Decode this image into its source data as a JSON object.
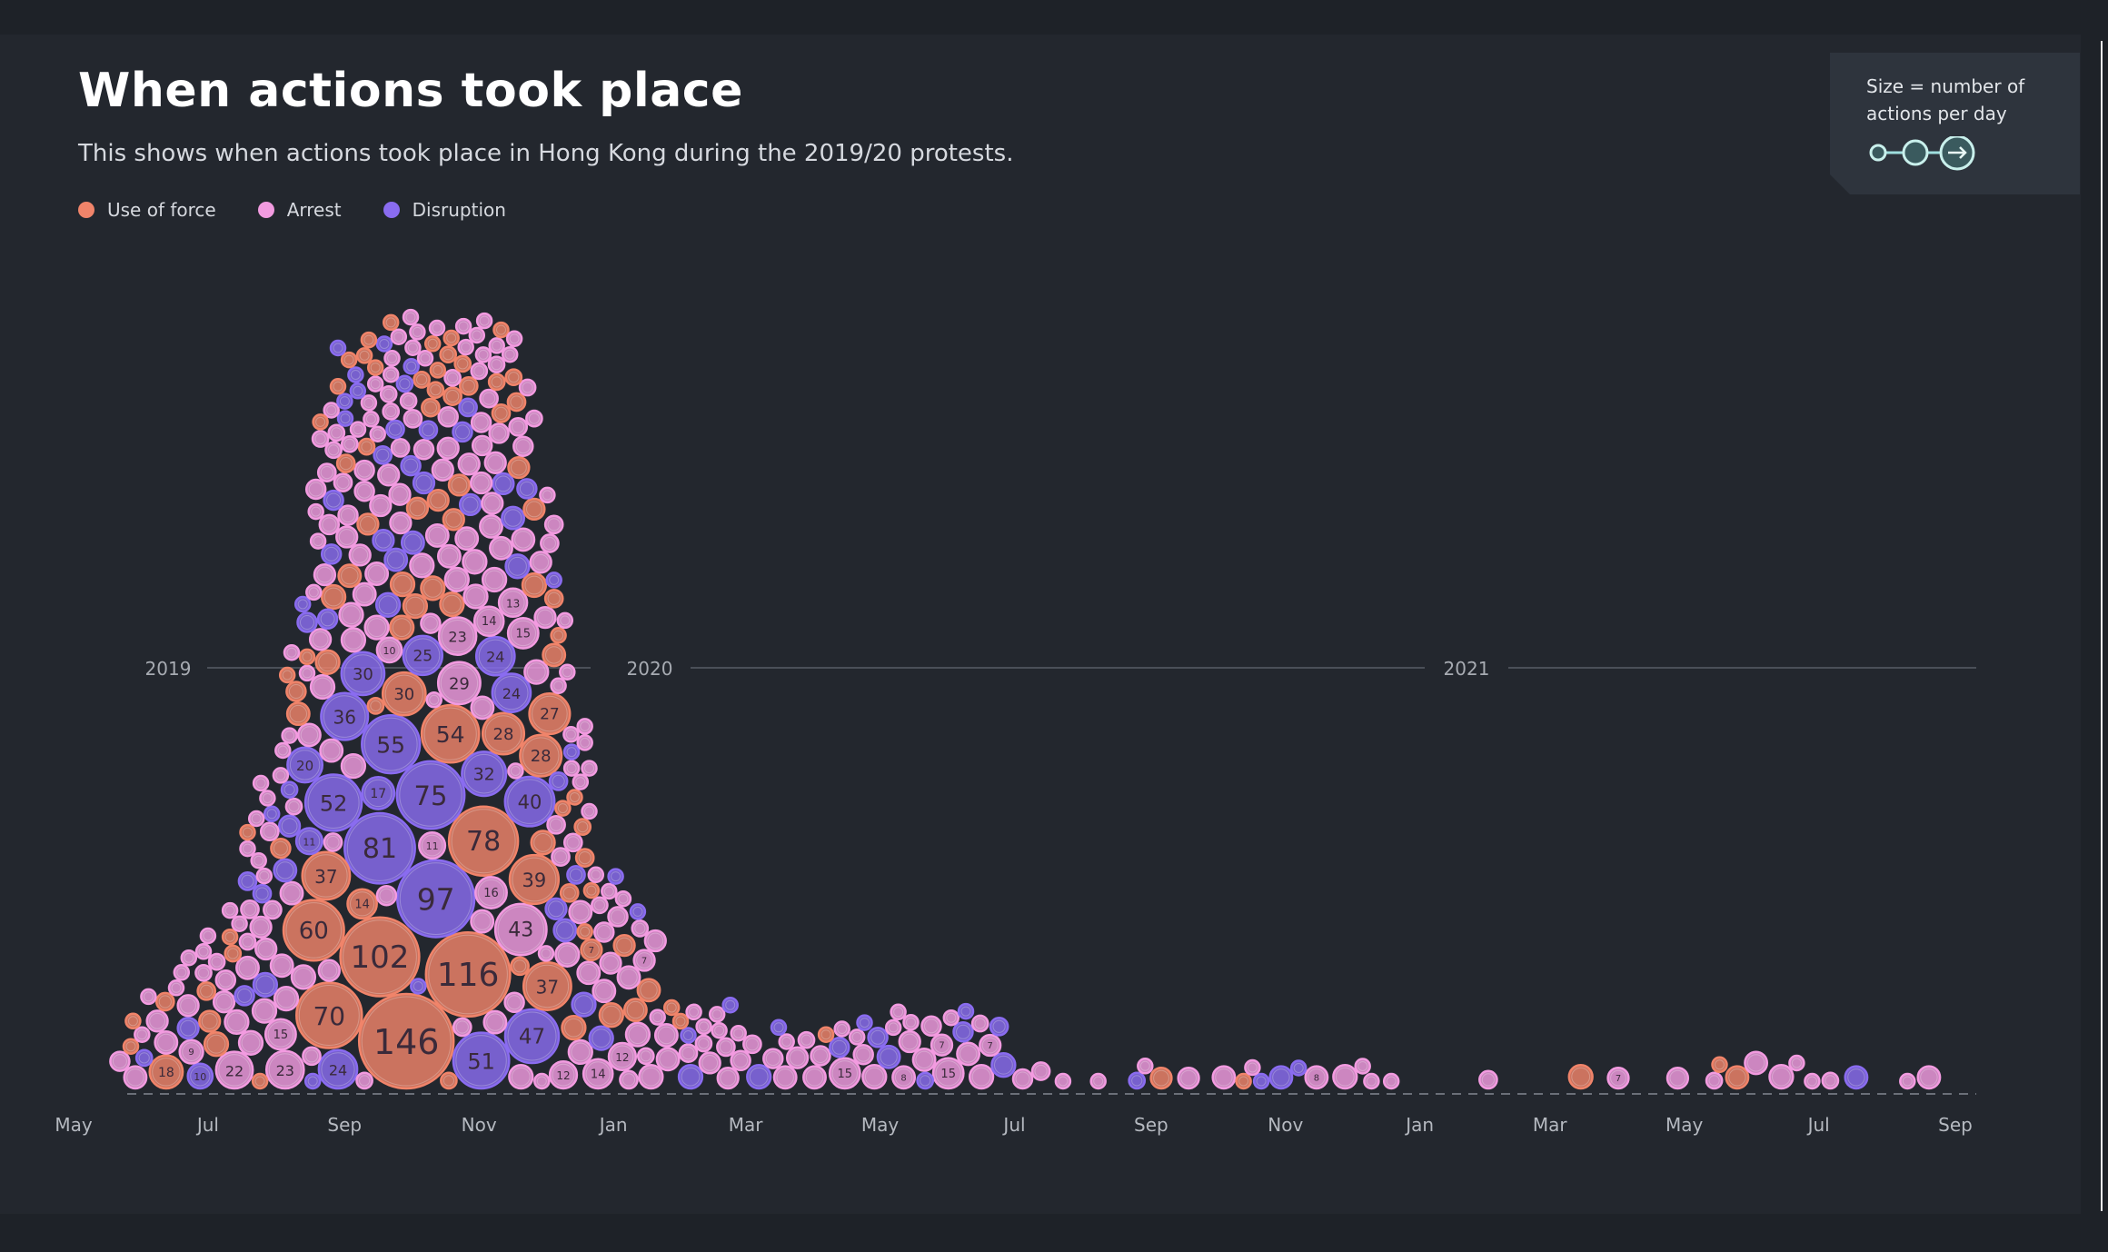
{
  "title": "When actions took place",
  "subtitle": "This shows when actions took place in Hong Kong during the 2019/20 protests.",
  "legend": [
    {
      "label": "Use of force",
      "color": "#f0846a"
    },
    {
      "label": "Arrest",
      "color": "#f29be0"
    },
    {
      "label": "Disruption",
      "color": "#8a6cf0"
    }
  ],
  "size_key": {
    "label": "Size = number of actions per day",
    "icon": "arrow-right-icon"
  },
  "chart_data": {
    "type": "scatter",
    "title": "When actions took place",
    "x_axis_ticks": [
      "May",
      "Jul",
      "Sep",
      "Nov",
      "Jan",
      "Mar",
      "May",
      "Jul",
      "Sep",
      "Nov",
      "Jan",
      "Mar",
      "May",
      "Jul",
      "Sep"
    ],
    "year_markers": [
      "2019",
      "2020",
      "2021"
    ],
    "series": [
      {
        "name": "Use of force",
        "points": [
          {
            "date": "2019-06-12",
            "count": 18
          },
          {
            "date": "2019-09-01",
            "count": 60
          },
          {
            "date": "2019-09-29",
            "count": 146
          },
          {
            "date": "2019-10-01",
            "count": 102
          },
          {
            "date": "2019-10-13",
            "count": 116
          },
          {
            "date": "2019-10-20",
            "count": 78
          },
          {
            "date": "2019-08-31",
            "count": 37
          },
          {
            "date": "2019-09-08",
            "count": 70
          },
          {
            "date": "2019-10-05",
            "count": 54
          },
          {
            "date": "2019-11-18",
            "count": 37
          },
          {
            "date": "2019-11-12",
            "count": 39
          },
          {
            "date": "2019-11-15",
            "count": 28
          },
          {
            "date": "2019-11-17",
            "count": 28
          },
          {
            "date": "2019-11-19",
            "count": 27
          },
          {
            "date": "2019-09-14",
            "count": 30
          },
          {
            "date": "2019-09-23",
            "count": 14
          },
          {
            "date": "2019-12-08",
            "count": 7
          }
        ]
      },
      {
        "name": "Arrest",
        "points": [
          {
            "date": "2019-07-13",
            "count": 22
          },
          {
            "date": "2019-08-05",
            "count": 23
          },
          {
            "date": "2019-08-17",
            "count": 15
          },
          {
            "date": "2019-11-02",
            "count": 23
          },
          {
            "date": "2019-11-06",
            "count": 43
          },
          {
            "date": "2019-10-09",
            "count": 29
          },
          {
            "date": "2019-11-04",
            "count": 16
          },
          {
            "date": "2019-11-07",
            "count": 15
          },
          {
            "date": "2019-11-08",
            "count": 14
          },
          {
            "date": "2019-11-09",
            "count": 13
          },
          {
            "date": "2019-09-30",
            "count": 11
          },
          {
            "date": "2019-10-02",
            "count": 10
          },
          {
            "date": "2019-12-25",
            "count": 14
          },
          {
            "date": "2019-12-20",
            "count": 12
          },
          {
            "date": "2019-12-22",
            "count": 12
          },
          {
            "date": "2020-01-01",
            "count": 7
          },
          {
            "date": "2020-04-15",
            "count": 15
          },
          {
            "date": "2020-05-01",
            "count": 8
          },
          {
            "date": "2020-05-15",
            "count": 7
          },
          {
            "date": "2020-06-01",
            "count": 15
          },
          {
            "date": "2020-06-15",
            "count": 7
          },
          {
            "date": "2020-11-20",
            "count": 8
          },
          {
            "date": "2021-04-01",
            "count": 7
          },
          {
            "date": "2019-06-16",
            "count": 9
          }
        ]
      },
      {
        "name": "Disruption",
        "points": [
          {
            "date": "2019-06-20",
            "count": 10
          },
          {
            "date": "2019-09-10",
            "count": 52
          },
          {
            "date": "2019-09-20",
            "count": 30
          },
          {
            "date": "2019-10-05",
            "count": 97
          },
          {
            "date": "2019-10-01",
            "count": 81
          },
          {
            "date": "2019-10-15",
            "count": 75
          },
          {
            "date": "2019-10-06",
            "count": 55
          },
          {
            "date": "2019-09-15",
            "count": 36
          },
          {
            "date": "2019-11-02",
            "count": 51
          },
          {
            "date": "2019-11-11",
            "count": 47
          },
          {
            "date": "2019-11-10",
            "count": 40
          },
          {
            "date": "2019-11-14",
            "count": 32
          },
          {
            "date": "2019-11-05",
            "count": 24
          },
          {
            "date": "2019-11-06",
            "count": 24
          },
          {
            "date": "2019-10-04",
            "count": 25
          },
          {
            "date": "2019-09-27",
            "count": 17
          },
          {
            "date": "2019-09-12",
            "count": 24
          },
          {
            "date": "2019-08-28",
            "count": 20
          },
          {
            "date": "2019-08-30",
            "count": 11
          }
        ]
      }
    ],
    "notes": "Bubble area = number of actions per day; bubbles stacked per day."
  }
}
